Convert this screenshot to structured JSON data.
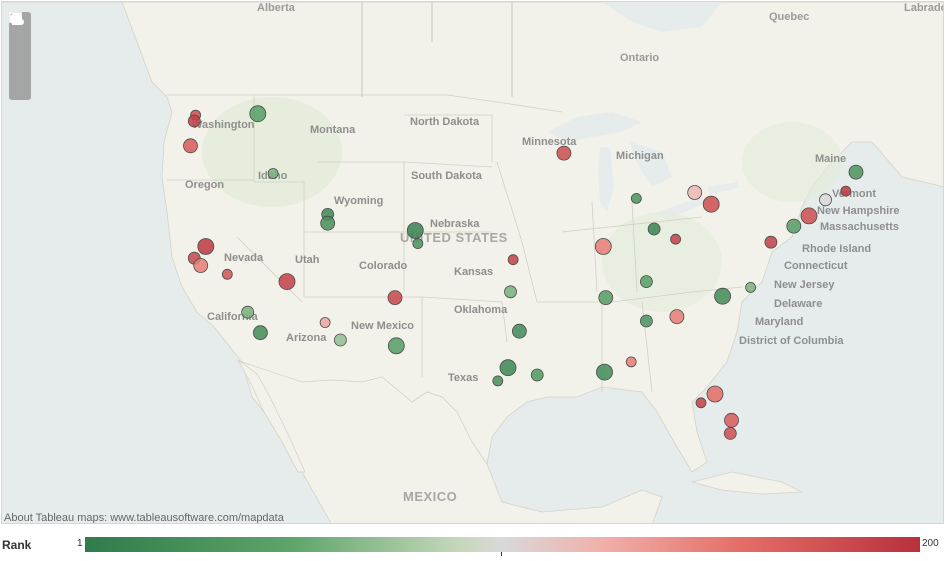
{
  "map": {
    "attribution": "About Tableau maps: www.tableausoftware.com/mapdata",
    "controls": [
      {
        "name": "zoom-in-button",
        "icon": "plus-icon"
      },
      {
        "name": "zoom-out-button",
        "icon": "minus-icon"
      },
      {
        "name": "rectangle-select-button",
        "icon": "rect-zoom-icon"
      },
      {
        "name": "home-button",
        "icon": "home-icon"
      }
    ],
    "labels": {
      "alberta": "Alberta",
      "quebec": "Quebec",
      "labrador": "Labrador",
      "ontario": "Ontario",
      "washington": "Washington",
      "montana": "Montana",
      "north_dakota": "North Dakota",
      "minnesota": "Minnesota",
      "michigan": "Michigan",
      "maine": "Maine",
      "vermont": "Vermont",
      "new_hampshire": "New Hampshire",
      "massachusetts": "Massachusetts",
      "rhode_island": "Rhode Island",
      "connecticut": "Connecticut",
      "new_jersey": "New Jersey",
      "delaware": "Delaware",
      "maryland": "Maryland",
      "dc": "District of Columbia",
      "oregon": "Oregon",
      "idaho": "Idaho",
      "wyoming": "Wyoming",
      "south_dakota": "South Dakota",
      "nebraska": "Nebraska",
      "united_states": "UNITED STATES",
      "nevada": "Nevada",
      "utah": "Utah",
      "colorado": "Colorado",
      "kansas": "Kansas",
      "california": "California",
      "arizona": "Arizona",
      "new_mexico": "New Mexico",
      "oklahoma": "Oklahoma",
      "texas": "Texas",
      "mexico": "MEXICO"
    },
    "colors": {
      "land": "#f1f1e9",
      "water": "#e6ecec",
      "rank_low": "#2f7b4a",
      "rank_mid": "#d9d9d9",
      "rank_high": "#b8303c"
    }
  },
  "legend": {
    "title": "Rank",
    "min_label": "1",
    "max_label": "200"
  },
  "chart_data": {
    "type": "scatter",
    "measure": "Rank",
    "color_range": [
      1,
      200
    ],
    "points": [
      {
        "lon": -122.3,
        "lat": 47.6,
        "rank": 180
      },
      {
        "lon": -122.4,
        "lat": 47.2,
        "rank": 190
      },
      {
        "lon": -122.7,
        "lat": 45.5,
        "rank": 170
      },
      {
        "lon": -117.4,
        "lat": 47.7,
        "rank": 40
      },
      {
        "lon": -116.2,
        "lat": 43.6,
        "rank": 60
      },
      {
        "lon": -111.9,
        "lat": 40.8,
        "rank": 15
      },
      {
        "lon": -111.9,
        "lat": 40.2,
        "rank": 25
      },
      {
        "lon": -105.0,
        "lat": 39.7,
        "rank": 10
      },
      {
        "lon": -104.8,
        "lat": 38.8,
        "rank": 30
      },
      {
        "lon": -122.4,
        "lat": 37.8,
        "rank": 185
      },
      {
        "lon": -121.9,
        "lat": 37.3,
        "rank": 150
      },
      {
        "lon": -121.5,
        "lat": 38.6,
        "rank": 195
      },
      {
        "lon": -119.8,
        "lat": 36.7,
        "rank": 175
      },
      {
        "lon": -118.2,
        "lat": 34.1,
        "rank": 60
      },
      {
        "lon": -117.2,
        "lat": 32.7,
        "rank": 20
      },
      {
        "lon": -115.1,
        "lat": 36.2,
        "rank": 190
      },
      {
        "lon": -112.1,
        "lat": 33.4,
        "rank": 130
      },
      {
        "lon": -110.9,
        "lat": 32.2,
        "rank": 70
      },
      {
        "lon": -106.6,
        "lat": 35.1,
        "rank": 185
      },
      {
        "lon": -106.5,
        "lat": 31.8,
        "rank": 40
      },
      {
        "lon": -97.3,
        "lat": 37.7,
        "rank": 190
      },
      {
        "lon": -97.5,
        "lat": 35.5,
        "rank": 60
      },
      {
        "lon": -96.8,
        "lat": 32.8,
        "rank": 20
      },
      {
        "lon": -97.7,
        "lat": 30.3,
        "rank": 15
      },
      {
        "lon": -98.5,
        "lat": 29.4,
        "rank": 25
      },
      {
        "lon": -95.4,
        "lat": 29.8,
        "rank": 35
      },
      {
        "lon": -93.3,
        "lat": 45.0,
        "rank": 180
      },
      {
        "lon": -90.2,
        "lat": 38.6,
        "rank": 150
      },
      {
        "lon": -87.6,
        "lat": 41.9,
        "rank": 30
      },
      {
        "lon": -86.2,
        "lat": 39.8,
        "rank": 10
      },
      {
        "lon": -83.0,
        "lat": 42.3,
        "rank": 120
      },
      {
        "lon": -81.7,
        "lat": 41.5,
        "rank": 180
      },
      {
        "lon": -84.5,
        "lat": 39.1,
        "rank": 190
      },
      {
        "lon": -86.8,
        "lat": 36.2,
        "rank": 40
      },
      {
        "lon": -84.4,
        "lat": 33.8,
        "rank": 150
      },
      {
        "lon": -80.8,
        "lat": 35.2,
        "rank": 20
      },
      {
        "lon": -78.6,
        "lat": 35.8,
        "rank": 60
      },
      {
        "lon": -77.0,
        "lat": 38.9,
        "rank": 190
      },
      {
        "lon": -75.2,
        "lat": 40.0,
        "rank": 40
      },
      {
        "lon": -74.0,
        "lat": 40.7,
        "rank": 180
      },
      {
        "lon": -71.1,
        "lat": 42.4,
        "rank": 195
      },
      {
        "lon": -72.7,
        "lat": 41.8,
        "rank": 100
      },
      {
        "lon": -70.3,
        "lat": 43.7,
        "rank": 30
      },
      {
        "lon": -81.4,
        "lat": 28.5,
        "rank": 160
      },
      {
        "lon": -82.5,
        "lat": 27.9,
        "rank": 190
      },
      {
        "lon": -80.2,
        "lat": 25.8,
        "rank": 180
      },
      {
        "lon": -80.1,
        "lat": 26.7,
        "rank": 170
      },
      {
        "lon": -90.1,
        "lat": 30.0,
        "rank": 20
      },
      {
        "lon": -88.0,
        "lat": 30.7,
        "rank": 150
      },
      {
        "lon": -86.8,
        "lat": 33.5,
        "rank": 30
      },
      {
        "lon": -90.0,
        "lat": 35.1,
        "rank": 40
      }
    ]
  }
}
